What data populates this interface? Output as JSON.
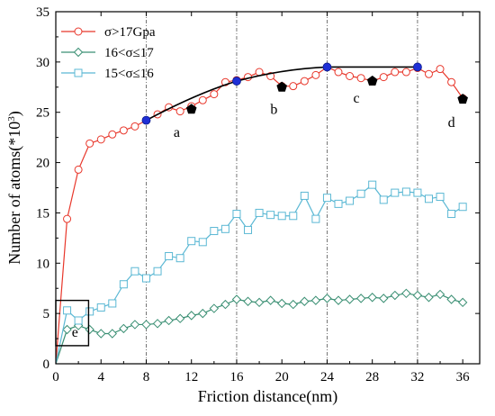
{
  "chart_data": {
    "type": "line",
    "xlabel": "Friction distance(nm)",
    "ylabel": {
      "main": "Number of atoms(*10",
      "sup": "3",
      "close": ")"
    },
    "xlim": [
      0,
      37.5
    ],
    "ylim": [
      0,
      35
    ],
    "xticks": [
      0,
      4,
      8,
      12,
      16,
      20,
      24,
      28,
      32,
      36
    ],
    "yticks": [
      0,
      5,
      10,
      15,
      20,
      25,
      30,
      35
    ],
    "vlines": [
      8,
      16,
      24,
      32
    ],
    "legend_position": "top-left",
    "series": [
      {
        "name": "σ>17Gpa",
        "color": "#e8372b",
        "marker": "circle",
        "x": [
          0,
          1,
          2,
          3,
          4,
          5,
          6,
          7,
          8,
          9,
          10,
          11,
          12,
          13,
          14,
          15,
          16,
          17,
          18,
          19,
          20,
          21,
          22,
          23,
          24,
          25,
          26,
          27,
          28,
          29,
          30,
          31,
          32,
          33,
          34,
          35,
          36
        ],
        "values": [
          0,
          14.4,
          19.3,
          21.9,
          22.3,
          22.8,
          23.2,
          23.6,
          24.2,
          24.8,
          25.5,
          25.1,
          25.6,
          26.2,
          26.8,
          28.0,
          28.2,
          28.5,
          29.0,
          28.6,
          27.6,
          27.6,
          28.1,
          28.7,
          29.5,
          29.0,
          28.6,
          28.4,
          28.1,
          28.5,
          29.0,
          29.0,
          29.4,
          28.8,
          29.3,
          28.0,
          26.4
        ]
      },
      {
        "name": "16<σ≤17",
        "color": "#3a8f73",
        "marker": "diamond",
        "x": [
          0,
          1,
          2,
          3,
          4,
          5,
          6,
          7,
          8,
          9,
          10,
          11,
          12,
          13,
          14,
          15,
          16,
          17,
          18,
          19,
          20,
          21,
          22,
          23,
          24,
          25,
          26,
          27,
          28,
          29,
          30,
          31,
          32,
          33,
          34,
          35,
          36
        ],
        "values": [
          0,
          3.4,
          3.8,
          3.4,
          3.0,
          3.0,
          3.5,
          3.9,
          3.9,
          4.0,
          4.3,
          4.5,
          4.8,
          5.0,
          5.5,
          5.9,
          6.4,
          6.2,
          6.1,
          6.3,
          6.0,
          5.9,
          6.2,
          6.3,
          6.5,
          6.3,
          6.4,
          6.5,
          6.6,
          6.5,
          6.8,
          7.0,
          6.8,
          6.6,
          6.9,
          6.4,
          6.1
        ]
      },
      {
        "name": "15<σ≤16",
        "color": "#5bb8d4",
        "marker": "square",
        "x": [
          0,
          1,
          2,
          3,
          4,
          5,
          6,
          7,
          8,
          9,
          10,
          11,
          12,
          13,
          14,
          15,
          16,
          17,
          18,
          19,
          20,
          21,
          22,
          23,
          24,
          25,
          26,
          27,
          28,
          29,
          30,
          31,
          32,
          33,
          34,
          35,
          36
        ],
        "values": [
          0,
          5.3,
          4.3,
          5.2,
          5.6,
          6.0,
          7.9,
          9.2,
          8.5,
          9.2,
          10.7,
          10.5,
          12.2,
          12.1,
          13.2,
          13.4,
          14.9,
          13.3,
          15.0,
          14.8,
          14.7,
          14.7,
          16.7,
          14.4,
          16.5,
          15.9,
          16.2,
          16.9,
          17.8,
          16.3,
          17.0,
          17.1,
          17.0,
          16.4,
          16.6,
          14.9,
          15.6
        ]
      }
    ],
    "envelope": {
      "color": "#000000",
      "points": [
        {
          "x": 8,
          "y": 24.2
        },
        {
          "x": 16,
          "y": 28.1
        },
        {
          "x": 24,
          "y": 29.5
        },
        {
          "x": 32,
          "y": 29.5
        }
      ],
      "marker_color": "#1f2fd6"
    },
    "annotations": [
      {
        "label": "a",
        "marker": "pentagon",
        "mx": 12.0,
        "my": 25.3,
        "tx": 10.7,
        "ty": 23.0
      },
      {
        "label": "b",
        "marker": "pentagon",
        "mx": 20.0,
        "my": 27.5,
        "tx": 19.3,
        "ty": 25.3
      },
      {
        "label": "c",
        "marker": "pentagon",
        "mx": 28.0,
        "my": 28.1,
        "tx": 26.6,
        "ty": 26.4
      },
      {
        "label": "d",
        "marker": "pentagon",
        "mx": 36.0,
        "my": 26.3,
        "tx": 35.0,
        "ty": 24.0
      }
    ],
    "inset_label": "e",
    "inset_box": {
      "x0": 0,
      "x1": 2.9,
      "y0": 1.8,
      "y1": 6.3
    }
  }
}
